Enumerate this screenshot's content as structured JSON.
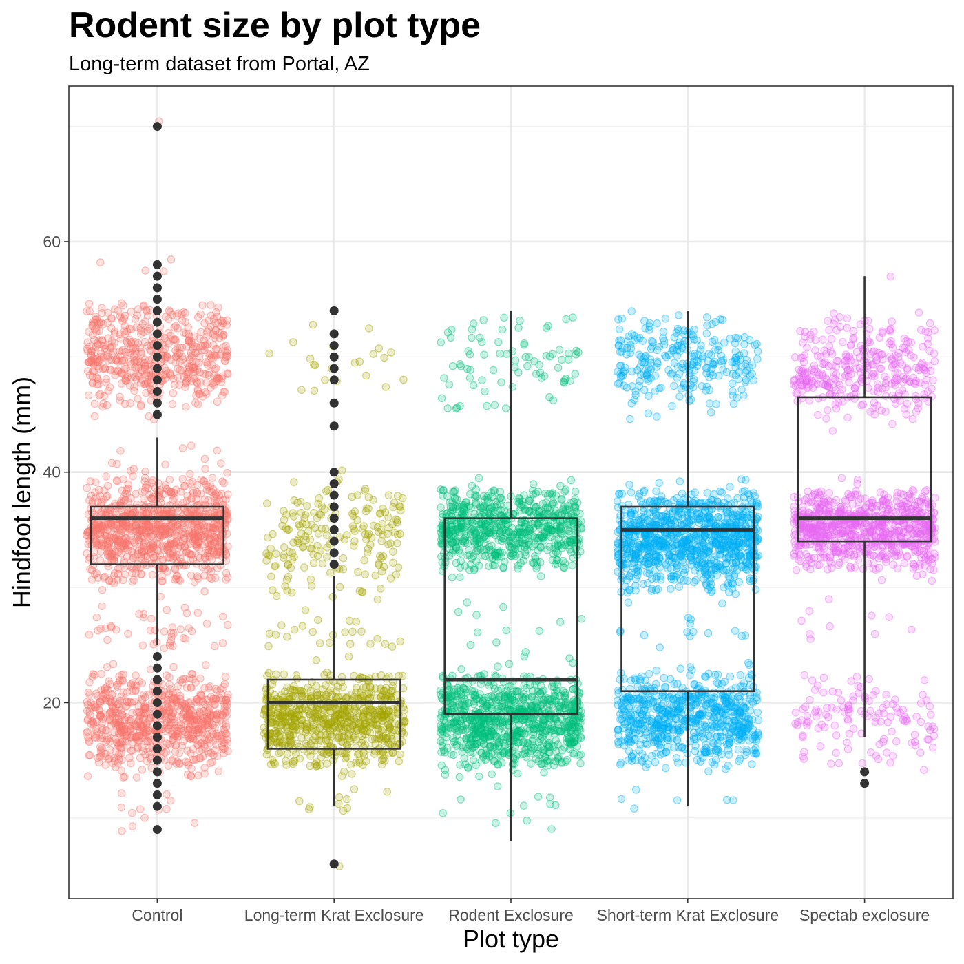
{
  "chart_data": {
    "type": "boxplot-jitter",
    "title": "Rodent size by plot type",
    "subtitle": "Long-term dataset from Portal, AZ",
    "xlabel": "Plot type",
    "ylabel": "Hindfoot length (mm)",
    "categories": [
      "Control",
      "Long-term Krat Exclosure",
      "Rodent Exclosure",
      "Short-term Krat Exclosure",
      "Spectab exclosure"
    ],
    "colors": [
      "#F8766D",
      "#A3A500",
      "#00BF7D",
      "#00B0F6",
      "#E76BF3"
    ],
    "ylim": [
      3,
      73.5
    ],
    "yticks": [
      20,
      40,
      60
    ],
    "grid": true,
    "legend": "none",
    "boxes": [
      {
        "category": "Control",
        "q1": 32,
        "median": 36,
        "q3": 37,
        "whisker_low": 25,
        "whisker_high": 43,
        "outliers": [
          70,
          58,
          57,
          56,
          55,
          54,
          53,
          52,
          51,
          50,
          49,
          48,
          47,
          46,
          45,
          24,
          23,
          22,
          21,
          20,
          19,
          18,
          17,
          16,
          15,
          14,
          13,
          12,
          11,
          9
        ]
      },
      {
        "category": "Long-term Krat Exclosure",
        "q1": 16,
        "median": 20,
        "q3": 22,
        "whisker_low": 11,
        "whisker_high": 31,
        "outliers": [
          54,
          52,
          51,
          50,
          49,
          48,
          46,
          44,
          40,
          39,
          38,
          37,
          36,
          35,
          34,
          33,
          32,
          6
        ]
      },
      {
        "category": "Rodent Exclosure",
        "q1": 19,
        "median": 22,
        "q3": 36,
        "whisker_low": 8,
        "whisker_high": 54,
        "outliers": []
      },
      {
        "category": "Short-term Krat Exclosure",
        "q1": 21,
        "median": 35,
        "q3": 37,
        "whisker_low": 11,
        "whisker_high": 54,
        "outliers": []
      },
      {
        "category": "Spectab exclosure",
        "q1": 34,
        "median": 36,
        "q3": 46.5,
        "whisker_low": 17,
        "whisker_high": 57,
        "outliers": [
          14,
          13
        ]
      }
    ],
    "jitter_clusters": [
      {
        "category": "Control",
        "bands": [
          [
            45,
            55,
            520
          ],
          [
            30,
            40,
            900
          ],
          [
            13.5,
            23,
            700
          ],
          [
            24,
            29,
            45
          ],
          [
            40,
            44,
            10
          ],
          [
            8,
            13,
            12
          ],
          [
            56,
            58.5,
            4
          ],
          [
            70,
            70,
            1
          ]
        ]
      },
      {
        "category": "Long-term Krat Exclosure",
        "bands": [
          [
            14,
            23,
            700
          ],
          [
            28,
            40,
            190
          ],
          [
            23,
            28,
            25
          ],
          [
            46,
            53,
            22
          ],
          [
            10,
            13,
            10
          ],
          [
            6,
            6,
            1
          ]
        ]
      },
      {
        "category": "Rodent Exclosure",
        "bands": [
          [
            14,
            23,
            850
          ],
          [
            31,
            39,
            650
          ],
          [
            45,
            54,
            80
          ],
          [
            23,
            30,
            14
          ],
          [
            8,
            13,
            12
          ]
        ]
      },
      {
        "category": "Short-term Krat Exclosure",
        "bands": [
          [
            14,
            23,
            650
          ],
          [
            29,
            39,
            950
          ],
          [
            45,
            54,
            260
          ],
          [
            24,
            28,
            14
          ],
          [
            10,
            13,
            6
          ]
        ]
      },
      {
        "category": "Spectab exclosure",
        "bands": [
          [
            14,
            23,
            130
          ],
          [
            31,
            39,
            780
          ],
          [
            44,
            54,
            330
          ],
          [
            24,
            30,
            10
          ],
          [
            57,
            57,
            1
          ]
        ]
      }
    ]
  }
}
